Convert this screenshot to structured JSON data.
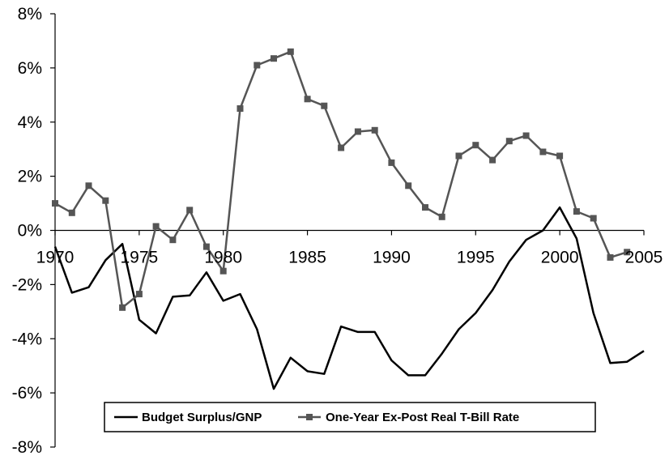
{
  "chart_data": {
    "type": "line",
    "title": "",
    "xlabel": "",
    "ylabel": "",
    "xlim": [
      1970,
      2005
    ],
    "ylim": [
      -0.08,
      0.08
    ],
    "x_ticks": [
      1970,
      1975,
      1980,
      1985,
      1990,
      1995,
      2000,
      2005
    ],
    "x_tick_labels": [
      "1970",
      "1975",
      "1980",
      "1985",
      "1990",
      "1995",
      "2000",
      "2005"
    ],
    "y_ticks": [
      -0.08,
      -0.06,
      -0.04,
      -0.02,
      0,
      0.02,
      0.04,
      0.06,
      0.08
    ],
    "y_tick_labels": [
      "-8%",
      "-6%",
      "-4%",
      "-2%",
      "0%",
      "2%",
      "4%",
      "6%",
      "8%"
    ],
    "grid": false,
    "legend_position": "bottom-center",
    "series": [
      {
        "name": "Budget Surplus/GNP",
        "color": "#000000",
        "marker": "none",
        "x": [
          1970,
          1971,
          1972,
          1973,
          1974,
          1975,
          1976,
          1977,
          1978,
          1979,
          1980,
          1981,
          1982,
          1983,
          1984,
          1985,
          1986,
          1987,
          1988,
          1989,
          1990,
          1991,
          1992,
          1993,
          1994,
          1995,
          1996,
          1997,
          1998,
          1999,
          2000,
          2001,
          2002,
          2003,
          2004,
          2005
        ],
        "values": [
          -0.006,
          -0.023,
          -0.021,
          -0.011,
          -0.005,
          -0.033,
          -0.038,
          -0.0245,
          -0.024,
          -0.0155,
          -0.026,
          -0.0235,
          -0.0365,
          -0.0585,
          -0.047,
          -0.052,
          -0.053,
          -0.0355,
          -0.0375,
          -0.0375,
          -0.048,
          -0.0535,
          -0.0535,
          -0.0455,
          -0.0365,
          -0.0305,
          -0.022,
          -0.0115,
          -0.0035,
          0.0,
          0.0085,
          -0.003,
          -0.0305,
          -0.049,
          -0.0485,
          -0.0445
        ]
      },
      {
        "name": "One-Year Ex-Post Real T-Bill Rate",
        "color": "#555555",
        "marker": "square",
        "x": [
          1970,
          1971,
          1972,
          1973,
          1974,
          1975,
          1976,
          1977,
          1978,
          1979,
          1980,
          1981,
          1982,
          1983,
          1984,
          1985,
          1986,
          1987,
          1988,
          1989,
          1990,
          1991,
          1992,
          1993,
          1994,
          1995,
          1996,
          1997,
          1998,
          1999,
          2000,
          2001,
          2002,
          2003,
          2004
        ],
        "values": [
          0.01,
          0.0065,
          0.0165,
          0.011,
          -0.0285,
          -0.0235,
          0.0015,
          -0.0035,
          0.0075,
          -0.006,
          -0.015,
          0.045,
          0.061,
          0.0635,
          0.066,
          0.0485,
          0.046,
          0.0305,
          0.0365,
          0.037,
          0.025,
          0.0165,
          0.0085,
          0.005,
          0.0275,
          0.0315,
          0.026,
          0.033,
          0.035,
          0.029,
          0.0275,
          0.007,
          0.0045,
          -0.01,
          -0.008
        ]
      }
    ]
  }
}
